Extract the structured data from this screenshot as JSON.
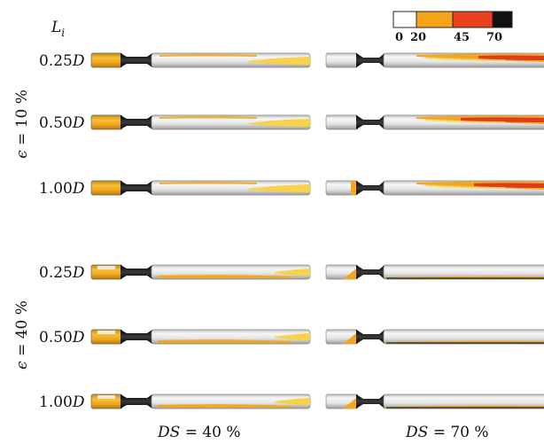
{
  "header": {
    "length_symbol": "L",
    "length_subscript": "i"
  },
  "colorbar": {
    "ticks": [
      "0",
      "20",
      "45",
      "70"
    ],
    "bands": [
      {
        "from": 0,
        "to": 20,
        "color": "#ffffff"
      },
      {
        "from": 20,
        "to": 45,
        "color": "#f5a41a"
      },
      {
        "from": 45,
        "to": 70,
        "color": "#e8401c"
      },
      {
        "from": 70,
        "to": 80,
        "color": "#111111"
      }
    ]
  },
  "colors": {
    "pipe_gray": "#c9c9c9",
    "pipe_light": "#f4f4f4",
    "orange": "#f2a81e",
    "yellow": "#f7d24a",
    "red": "#e23b1b",
    "throat": "#1d1d1d"
  },
  "groups": [
    {
      "symbol": "ϵ",
      "value": "= 10 %"
    },
    {
      "symbol": "ϵ",
      "value": "= 40 %"
    }
  ],
  "rows": [
    {
      "group": 0,
      "label": "0.25",
      "unit": "D"
    },
    {
      "group": 0,
      "label": "0.50",
      "unit": "D"
    },
    {
      "group": 0,
      "label": "1.00",
      "unit": "D"
    },
    {
      "group": 1,
      "label": "0.25",
      "unit": "D"
    },
    {
      "group": 1,
      "label": "0.50",
      "unit": "D"
    },
    {
      "group": 1,
      "label": "1.00",
      "unit": "D"
    }
  ],
  "columns": [
    {
      "symbol": "DS",
      "value": "= 40 %"
    },
    {
      "symbol": "DS",
      "value": "= 70 %"
    }
  ]
}
